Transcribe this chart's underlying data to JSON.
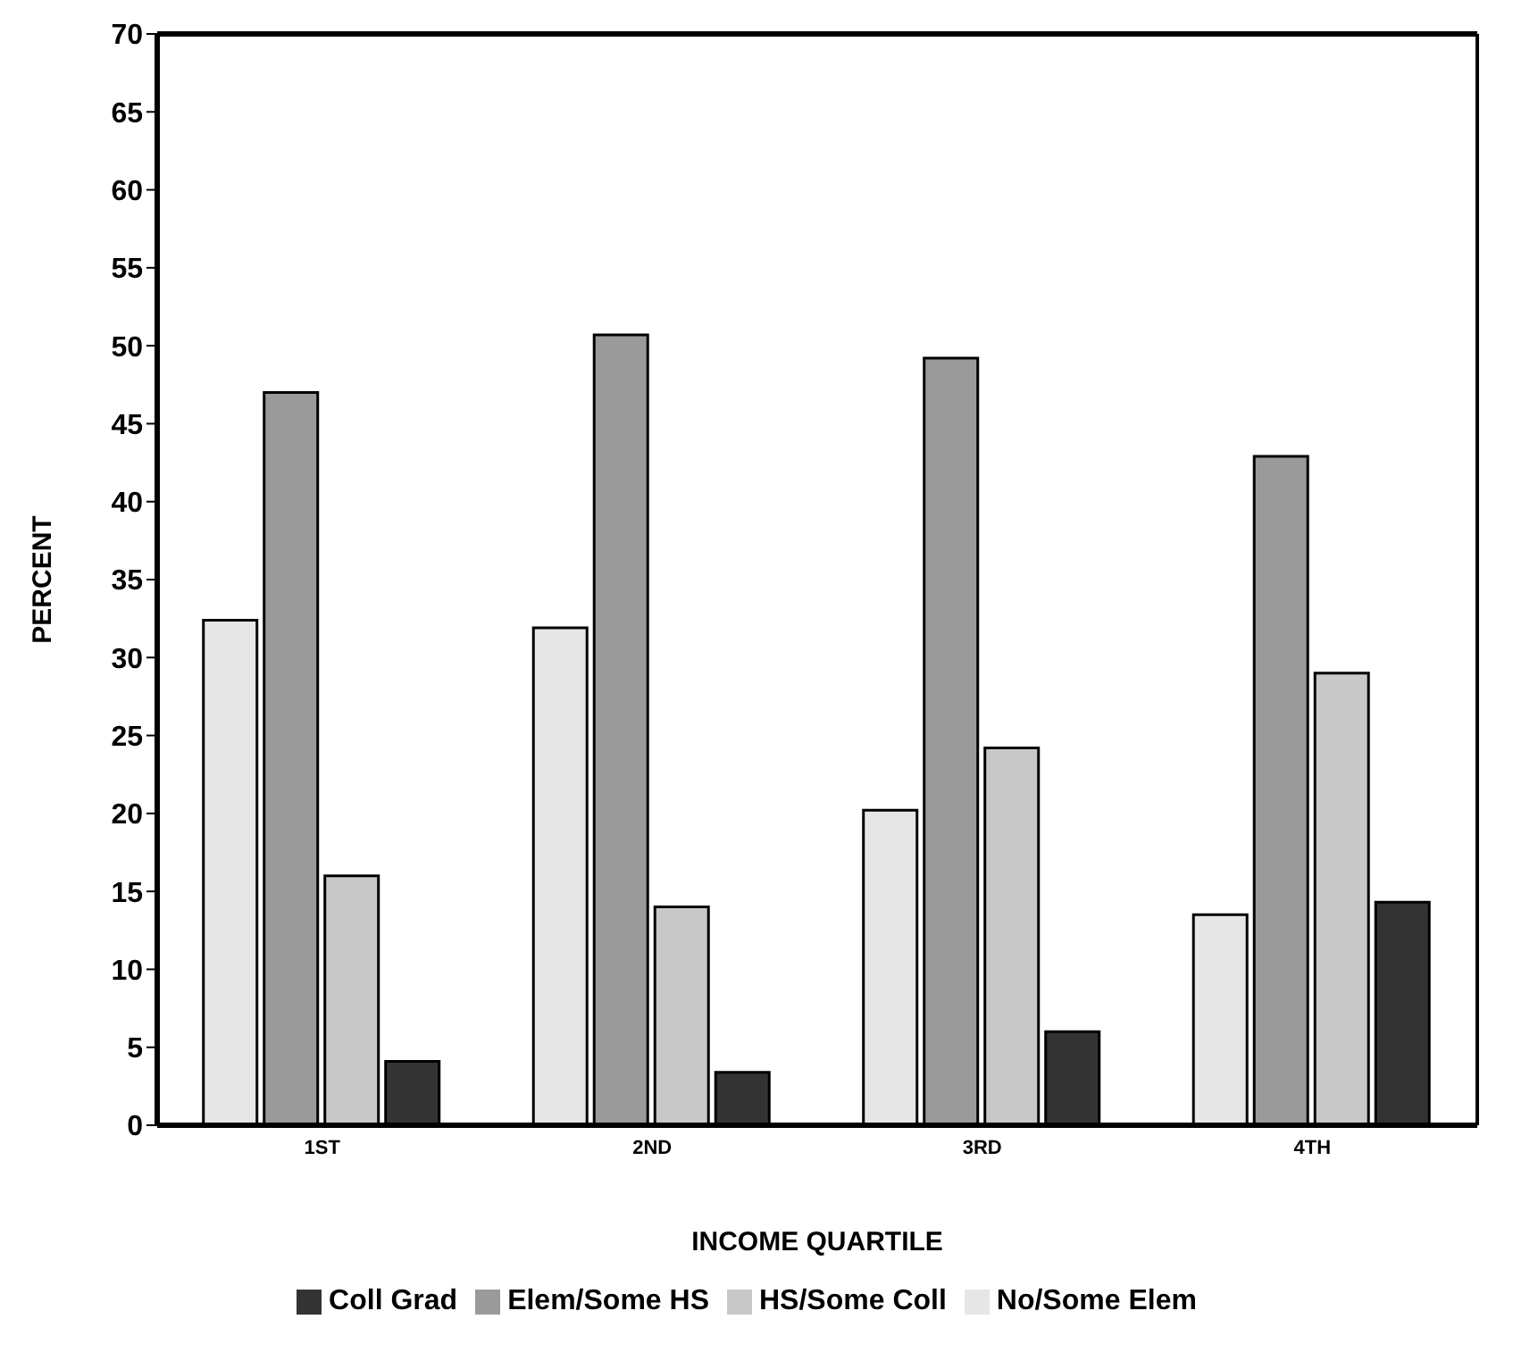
{
  "chart_data": {
    "type": "bar",
    "xlabel": "INCOME QUARTILE",
    "ylabel": "PERCENT",
    "categories": [
      "1ST",
      "2ND",
      "3RD",
      "4TH"
    ],
    "series": [
      {
        "name": "No/Some Elem",
        "color": "#e6e6e6",
        "values": [
          32.4,
          31.9,
          20.2,
          13.5
        ]
      },
      {
        "name": "Elem/Some HS",
        "color": "#9a9a9a",
        "values": [
          47.0,
          50.7,
          49.2,
          42.9
        ]
      },
      {
        "name": "HS/Some Coll",
        "color": "#c8c8c8",
        "values": [
          16.0,
          14.0,
          24.2,
          29.0
        ]
      },
      {
        "name": "Coll Grad",
        "color": "#333333",
        "values": [
          4.1,
          3.4,
          6.0,
          14.3
        ]
      }
    ],
    "ylim": [
      0,
      70
    ],
    "yticks": [
      0,
      5,
      10,
      15,
      20,
      25,
      30,
      35,
      40,
      45,
      50,
      55,
      60,
      65,
      70
    ],
    "grid": false,
    "legend": "bottom"
  }
}
